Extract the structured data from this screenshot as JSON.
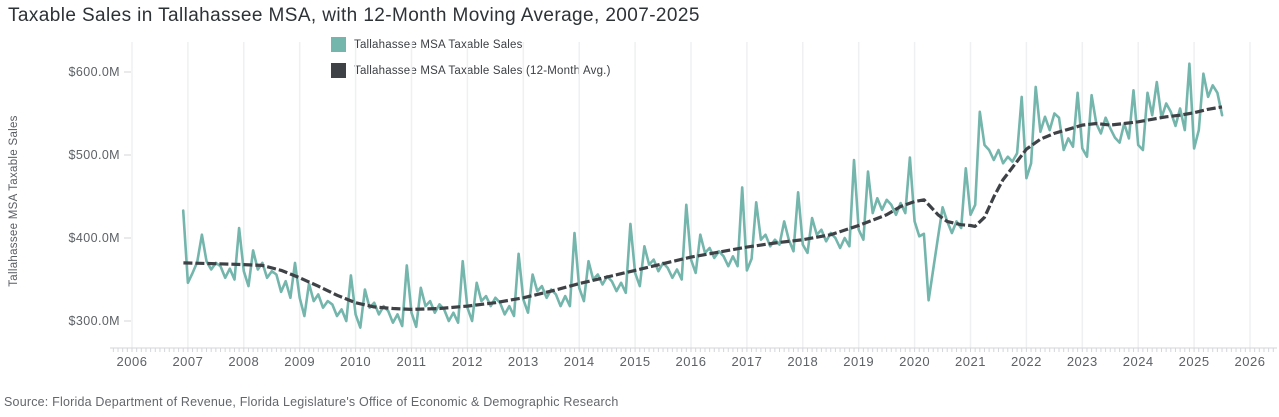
{
  "title": "Taxable Sales in Tallahassee MSA, with 12-Month Moving Average, 2007-2025",
  "y_axis_title": "Tallahassee MSA Taxable Sales",
  "source": "Source: Florida Department of Revenue, Florida Legislature's Office of Economic & Demographic Research",
  "legend": {
    "items": [
      {
        "label": "Tallahassee MSA Taxable Sales",
        "color": "#74b5ac"
      },
      {
        "label": "Tallahassee MSA Taxable Sales (12-Month Avg.)",
        "color": "#3e4246"
      }
    ]
  },
  "colors": {
    "sales_line": "#74b5ac",
    "avg_line": "#3e4246",
    "gridline": "#eff0f2",
    "axis_line": "#d4d6da",
    "tick_label": "#5d6267",
    "title_text": "#2d3237",
    "source_text": "#63676c",
    "background": "#ffffff"
  },
  "chart_data": {
    "type": "line",
    "title": "Taxable Sales in Tallahassee MSA, with 12-Month Moving Average, 2007-2025",
    "xlabel": "",
    "ylabel": "Tallahassee MSA Taxable Sales",
    "unit": "USD millions",
    "grid": "vertical-year-gridlines",
    "legend_position": "top-center",
    "x_ticks": [
      2006,
      2007,
      2008,
      2009,
      2010,
      2011,
      2012,
      2013,
      2014,
      2015,
      2016,
      2017,
      2018,
      2019,
      2020,
      2021,
      2022,
      2023,
      2024,
      2025,
      2026
    ],
    "y_ticks": [
      {
        "value": 600,
        "label": "$600.0M"
      },
      {
        "value": 500,
        "label": "$500.0M"
      },
      {
        "value": 400,
        "label": "$400.0M"
      },
      {
        "value": 300,
        "label": "$300.0M"
      }
    ],
    "xlim": [
      2005.65,
      2026.45
    ],
    "ylim": [
      263,
      638
    ],
    "series": [
      {
        "name": "Tallahassee MSA Taxable Sales",
        "style": "solid",
        "freq": "monthly",
        "start_decimal_year": 2006.9167,
        "start_month": "2006-12",
        "end_month": "2025-07",
        "values": [
          433,
          346,
          358,
          371,
          404,
          372,
          362,
          370,
          366,
          352,
          363,
          350,
          412,
          360,
          342,
          385,
          362,
          370,
          352,
          360,
          356,
          335,
          348,
          328,
          370,
          328,
          306,
          345,
          324,
          332,
          316,
          324,
          320,
          306,
          314,
          300,
          355,
          308,
          292,
          338,
          316,
          322,
          308,
          318,
          312,
          298,
          308,
          294,
          367,
          310,
          293,
          340,
          318,
          324,
          310,
          320,
          314,
          300,
          310,
          298,
          372,
          316,
          300,
          346,
          324,
          330,
          318,
          328,
          322,
          308,
          318,
          306,
          381,
          326,
          310,
          356,
          336,
          342,
          328,
          338,
          332,
          318,
          330,
          318,
          406,
          340,
          324,
          372,
          350,
          356,
          344,
          354,
          348,
          336,
          346,
          334,
          417,
          358,
          342,
          390,
          368,
          374,
          360,
          370,
          364,
          352,
          362,
          350,
          440,
          374,
          358,
          404,
          382,
          388,
          376,
          384,
          378,
          366,
          378,
          366,
          461,
          361,
          375,
          443,
          398,
          404,
          390,
          398,
          392,
          420,
          398,
          384,
          455,
          392,
          382,
          424,
          404,
          410,
          396,
          406,
          400,
          388,
          400,
          390,
          494,
          410,
          398,
          480,
          430,
          448,
          434,
          446,
          440,
          428,
          442,
          430,
          497,
          420,
          402,
          405,
          325,
          362,
          400,
          437,
          420,
          406,
          420,
          412,
          484,
          428,
          440,
          552,
          512,
          506,
          494,
          506,
          490,
          498,
          492,
          502,
          570,
          472,
          490,
          582,
          528,
          546,
          530,
          550,
          545,
          506,
          520,
          510,
          575,
          508,
          498,
          572,
          538,
          526,
          545,
          532,
          521,
          515,
          538,
          520,
          578,
          512,
          506,
          575,
          548,
          588,
          545,
          562,
          552,
          535,
          556,
          530,
          610,
          508,
          530,
          598,
          570,
          584,
          575,
          548
        ]
      },
      {
        "name": "Tallahassee MSA Taxable Sales (12-Month Avg.)",
        "style": "dashed",
        "points": [
          [
            2006.92,
            370
          ],
          [
            2007.5,
            369
          ],
          [
            2008.0,
            368
          ],
          [
            2008.33,
            367
          ],
          [
            2008.67,
            361
          ],
          [
            2009.0,
            352
          ],
          [
            2009.33,
            342
          ],
          [
            2009.67,
            331
          ],
          [
            2010.0,
            322
          ],
          [
            2010.33,
            317
          ],
          [
            2010.67,
            315
          ],
          [
            2011.0,
            314
          ],
          [
            2011.5,
            315
          ],
          [
            2012.0,
            318
          ],
          [
            2012.5,
            322
          ],
          [
            2013.0,
            328
          ],
          [
            2013.5,
            336
          ],
          [
            2014.0,
            345
          ],
          [
            2014.5,
            353
          ],
          [
            2015.0,
            361
          ],
          [
            2015.5,
            369
          ],
          [
            2016.0,
            377
          ],
          [
            2016.5,
            383
          ],
          [
            2017.0,
            389
          ],
          [
            2017.5,
            394
          ],
          [
            2018.0,
            398
          ],
          [
            2018.5,
            404
          ],
          [
            2019.0,
            415
          ],
          [
            2019.5,
            428
          ],
          [
            2019.75,
            438
          ],
          [
            2020.0,
            444
          ],
          [
            2020.17,
            446
          ],
          [
            2020.42,
            428
          ],
          [
            2020.58,
            420
          ],
          [
            2020.83,
            416
          ],
          [
            2021.0,
            415
          ],
          [
            2021.08,
            414
          ],
          [
            2021.25,
            425
          ],
          [
            2021.42,
            450
          ],
          [
            2021.58,
            470
          ],
          [
            2021.83,
            492
          ],
          [
            2022.0,
            507
          ],
          [
            2022.25,
            519
          ],
          [
            2022.5,
            526
          ],
          [
            2022.75,
            531
          ],
          [
            2023.0,
            536
          ],
          [
            2023.25,
            538
          ],
          [
            2023.5,
            536
          ],
          [
            2023.75,
            538
          ],
          [
            2024.0,
            540
          ],
          [
            2024.25,
            543
          ],
          [
            2024.5,
            546
          ],
          [
            2024.75,
            548
          ],
          [
            2025.0,
            551
          ],
          [
            2025.25,
            555
          ],
          [
            2025.5,
            558
          ]
        ]
      }
    ]
  }
}
